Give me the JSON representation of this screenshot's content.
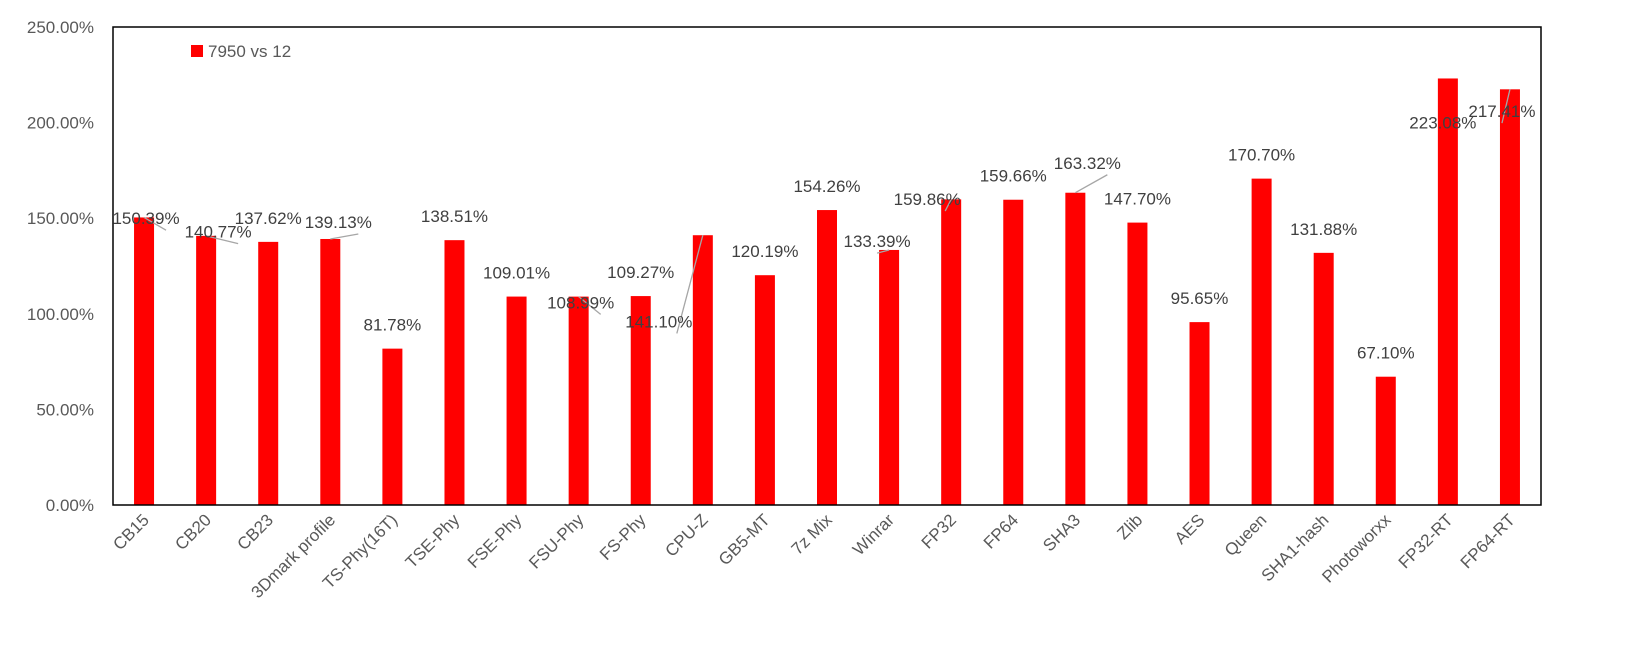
{
  "chart_data": {
    "type": "bar",
    "title": "",
    "xlabel": "",
    "ylabel": "",
    "ylim": [
      0,
      250
    ],
    "y_tick_format": "percent_2dp",
    "y_ticks": [
      0,
      50,
      100,
      150,
      200,
      250
    ],
    "y_tick_labels": [
      "0.00%",
      "50.00%",
      "100.00%",
      "150.00%",
      "200.00%",
      "250.00%"
    ],
    "grid": false,
    "legend_position": "top-left",
    "categories": [
      "CB15",
      "CB20",
      "CB23",
      "3Dmark profile",
      "TS-Phy(16T)",
      "TSE-Phy",
      "FSE-Phy",
      "FSU-Phy",
      "FS-Phy",
      "CPU-Z",
      "GB5-MT",
      "7z Mix",
      "Winrar",
      "FP32",
      "FP64",
      "SHA3",
      "Zlib",
      "AES",
      "Queen",
      "SHA1-hash",
      "Photoworxx",
      "FP32-RT",
      "FP64-RT"
    ],
    "series": [
      {
        "name": "7950 vs 12",
        "color": "#ff0000",
        "values": [
          150.39,
          140.77,
          137.62,
          139.13,
          81.78,
          138.51,
          109.01,
          108.99,
          109.27,
          141.1,
          120.19,
          154.26,
          133.39,
          159.86,
          159.66,
          163.32,
          147.7,
          95.65,
          170.7,
          131.88,
          67.1,
          223.08,
          217.41
        ],
        "data_labels": [
          "150.39%",
          "140.77%",
          "137.62%",
          "139.13%",
          "81.78%",
          "138.51%",
          "109.01%",
          "108.99%",
          "109.27%",
          "141.10%",
          "120.19%",
          "154.26%",
          "133.39%",
          "159.86%",
          "159.66%",
          "163.32%",
          "147.70%",
          "95.65%",
          "170.70%",
          "131.88%",
          "67.10%",
          "223.08%",
          "217.41%"
        ]
      }
    ]
  }
}
